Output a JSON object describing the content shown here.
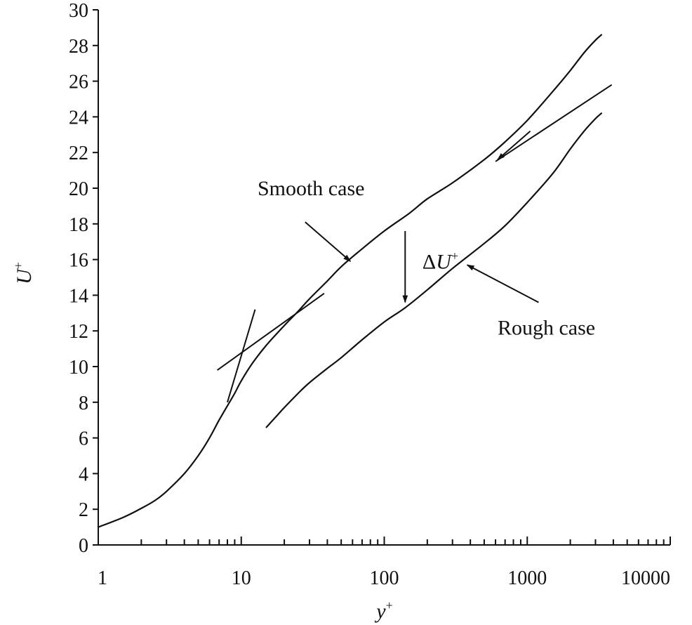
{
  "chart_data": {
    "type": "line",
    "xscale": "log",
    "xlim": [
      1,
      10000
    ],
    "ylim": [
      0,
      30
    ],
    "xlabel": "y",
    "xlabel_sup": "+",
    "ylabel": "U",
    "ylabel_sup": "+",
    "xticks": [
      1,
      10,
      100,
      1000,
      10000
    ],
    "xtick_labels": [
      "1",
      "10",
      "100",
      "1000",
      "10000"
    ],
    "yticks": [
      0,
      2,
      4,
      6,
      8,
      10,
      12,
      14,
      16,
      18,
      20,
      22,
      24,
      26,
      28,
      30
    ],
    "ytick_labels": [
      "0",
      "2",
      "4",
      "6",
      "8",
      "10",
      "12",
      "14",
      "16",
      "18",
      "20",
      "22",
      "24",
      "26",
      "28",
      "30"
    ],
    "grid": false,
    "series": [
      {
        "x": [
          1,
          1.5,
          2,
          2.5,
          3,
          4,
          5,
          6,
          7,
          8,
          9,
          10,
          12,
          15,
          20,
          25,
          30,
          40,
          50,
          70,
          100,
          150,
          200,
          300,
          500,
          700,
          1000,
          1500,
          2000,
          2500,
          3000,
          3300
        ],
        "y": [
          1.0,
          1.55,
          2.05,
          2.5,
          3.0,
          4.0,
          5.0,
          6.0,
          7.0,
          7.8,
          8.5,
          9.2,
          10.2,
          11.2,
          12.3,
          13.1,
          13.8,
          14.8,
          15.6,
          16.6,
          17.6,
          18.6,
          19.4,
          20.3,
          21.6,
          22.6,
          23.8,
          25.4,
          26.6,
          27.6,
          28.3,
          28.6
        ]
      },
      {
        "x": [
          15,
          18,
          20,
          25,
          30,
          40,
          50,
          70,
          100,
          140,
          200,
          300,
          500,
          700,
          1000,
          1500,
          2000,
          2500,
          3000,
          3300
        ],
        "y": [
          6.6,
          7.3,
          7.7,
          8.5,
          9.1,
          9.9,
          10.5,
          11.5,
          12.5,
          13.3,
          14.3,
          15.5,
          16.9,
          17.9,
          19.2,
          20.8,
          22.2,
          23.2,
          23.9,
          24.2
        ]
      }
    ],
    "reference_lines": [
      {
        "x": [
          6.8,
          38
        ],
        "y": [
          9.8,
          14.1
        ]
      },
      {
        "x": [
          600,
          3900
        ],
        "y": [
          21.5,
          25.8
        ]
      },
      {
        "x": [
          8,
          12.5
        ],
        "y": [
          8.0,
          13.2
        ]
      }
    ],
    "annotations": [
      {
        "text": "Smooth case",
        "text_x": 13,
        "text_y": 19.6,
        "arrow_from": [
          28,
          18.1
        ],
        "arrow_to": [
          58,
          15.9
        ]
      },
      {
        "text": "Rough case",
        "text_x": 620,
        "text_y": 11.8,
        "arrow_from": [
          1200,
          13.6
        ],
        "arrow_to": [
          380,
          15.7
        ]
      },
      {
        "text": "ΔU",
        "text_sup": "+",
        "text_x": 185,
        "text_y": 15.5,
        "arrow_from": [
          140,
          17.6
        ],
        "arrow_to": [
          140,
          13.6
        ]
      },
      {
        "text": "",
        "arrow_from": [
          1050,
          23.2
        ],
        "arrow_to": [
          620,
          21.6
        ]
      }
    ]
  }
}
